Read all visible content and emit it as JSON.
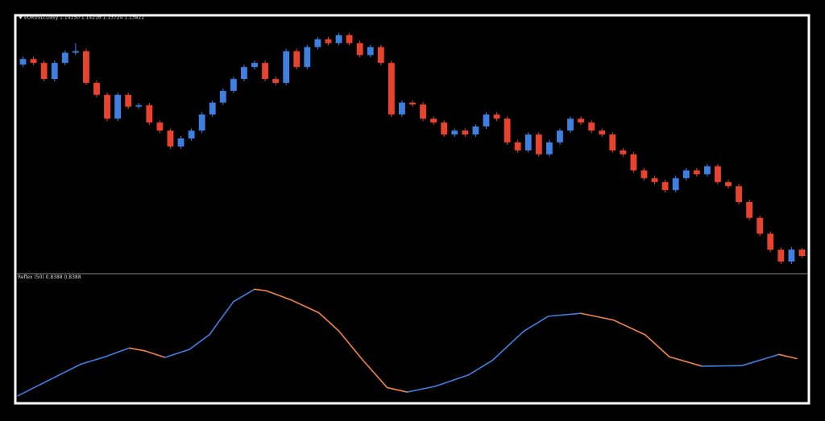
{
  "chart_data": [
    {
      "type": "candlestick",
      "title": "EURUSD,Daily  1.14150 1.14216 1.13724 1.13822",
      "up_color": "#3f7fe0",
      "down_color": "#e8432e",
      "ylim": [
        1.13,
        1.26
      ],
      "open": [
        1.236,
        1.2389,
        1.2369,
        1.2287,
        1.2369,
        1.2421,
        1.2429,
        1.2267,
        1.2206,
        1.2084,
        1.2206,
        1.2145,
        1.2153,
        1.2064,
        1.2023,
        1.1942,
        1.1983,
        1.2023,
        1.2105,
        1.2166,
        1.2226,
        1.2287,
        1.2348,
        1.2369,
        1.2287,
        1.2267,
        1.2429,
        1.2348,
        1.245,
        1.249,
        1.247,
        1.2511,
        1.247,
        1.2409,
        1.245,
        1.2369,
        1.2105,
        1.2166,
        1.2157,
        1.2084,
        1.2064,
        1.2003,
        1.2023,
        1.2003,
        1.2044,
        1.2105,
        1.2084,
        1.1963,
        1.1922,
        1.2003,
        1.1902,
        1.1963,
        1.2023,
        1.2084,
        1.2064,
        1.2023,
        1.2003,
        1.1922,
        1.1902,
        1.182,
        1.178,
        1.176,
        1.1719,
        1.178,
        1.182,
        1.18,
        1.1841,
        1.176,
        1.1739,
        1.1658,
        1.1577,
        1.1496,
        1.1414,
        1.1354,
        1.1415
      ],
      "high": [
        1.2401,
        1.2401,
        1.2381,
        1.2381,
        1.2433,
        1.247,
        1.2441,
        1.2279,
        1.2218,
        1.2218,
        1.2218,
        1.2165,
        1.2165,
        1.2076,
        1.2035,
        1.1995,
        1.2035,
        1.2117,
        1.2178,
        1.2238,
        1.2299,
        1.236,
        1.2381,
        1.2381,
        1.2299,
        1.2441,
        1.2441,
        1.2462,
        1.2502,
        1.2502,
        1.2523,
        1.2523,
        1.2482,
        1.2462,
        1.2462,
        1.2381,
        1.2178,
        1.2178,
        1.2169,
        1.2096,
        1.2076,
        1.2035,
        1.2035,
        1.2056,
        1.2117,
        1.2117,
        1.2096,
        1.1975,
        1.2015,
        1.2015,
        1.1975,
        1.2035,
        1.2096,
        1.2096,
        1.2076,
        1.2035,
        1.2015,
        1.1934,
        1.1914,
        1.1832,
        1.1792,
        1.1772,
        1.1792,
        1.1832,
        1.1832,
        1.1853,
        1.1853,
        1.1772,
        1.1751,
        1.167,
        1.1589,
        1.1508,
        1.1426,
        1.1427,
        1.1422
      ],
      "low": [
        1.2348,
        1.2357,
        1.2275,
        1.2275,
        1.2357,
        1.2409,
        1.2255,
        1.2194,
        1.2072,
        1.2072,
        1.2133,
        1.2133,
        1.2052,
        1.2011,
        1.193,
        1.193,
        1.1971,
        1.2011,
        1.2093,
        1.2154,
        1.2214,
        1.2275,
        1.2336,
        1.2275,
        1.2255,
        1.2255,
        1.2336,
        1.2336,
        1.2438,
        1.2458,
        1.2458,
        1.2458,
        1.2397,
        1.2397,
        1.2357,
        1.2093,
        1.2093,
        1.2145,
        1.2072,
        1.2052,
        1.1991,
        1.1991,
        1.1991,
        1.1991,
        1.2032,
        1.2072,
        1.1951,
        1.191,
        1.191,
        1.189,
        1.189,
        1.1951,
        1.2011,
        1.2052,
        1.2011,
        1.1991,
        1.191,
        1.189,
        1.1808,
        1.1768,
        1.1748,
        1.1707,
        1.1707,
        1.1768,
        1.1788,
        1.1788,
        1.1748,
        1.1727,
        1.1646,
        1.1565,
        1.1484,
        1.1402,
        1.1342,
        1.1342,
        1.1372
      ],
      "close": [
        1.2389,
        1.2369,
        1.2287,
        1.2369,
        1.2421,
        1.2429,
        1.2267,
        1.2206,
        1.2084,
        1.2206,
        1.2145,
        1.2153,
        1.2064,
        1.2023,
        1.1942,
        1.1983,
        1.2023,
        1.2105,
        1.2166,
        1.2226,
        1.2287,
        1.2348,
        1.2369,
        1.2287,
        1.2267,
        1.2429,
        1.2348,
        1.245,
        1.249,
        1.247,
        1.2511,
        1.247,
        1.2409,
        1.245,
        1.2369,
        1.2105,
        1.2166,
        1.2157,
        1.2084,
        1.2064,
        1.2003,
        1.2023,
        1.2003,
        1.2044,
        1.2105,
        1.2084,
        1.1963,
        1.1922,
        1.2003,
        1.1902,
        1.1963,
        1.2023,
        1.2084,
        1.2064,
        1.2023,
        1.2003,
        1.1922,
        1.1902,
        1.182,
        1.178,
        1.176,
        1.1719,
        1.178,
        1.182,
        1.18,
        1.1841,
        1.176,
        1.1739,
        1.1658,
        1.1577,
        1.1496,
        1.1414,
        1.1354,
        1.1415,
        1.1382
      ]
    },
    {
      "type": "line",
      "title": "Reflex (50) 0.8388 0.8388",
      "up_color": "#3f7fe0",
      "down_color": "#f0824a",
      "ylim": [
        -0.6,
        3.4
      ],
      "xlim": [
        0,
        75
      ],
      "x": [
        0,
        2.1,
        6,
        8.3,
        10.6,
        12.1,
        14,
        16.3,
        18.2,
        20.5,
        22.5,
        23.6,
        26,
        28.6,
        30.5,
        32.8,
        35.1,
        37,
        39.7,
        42.8,
        45.1,
        48.1,
        50.4,
        53.5,
        56.6,
        59.6,
        61.9,
        65,
        68.8,
        72.3,
        74
      ],
      "values": [
        -0.43,
        -0.05,
        0.65,
        0.9,
        1.2,
        1.1,
        0.88,
        1.15,
        1.65,
        2.78,
        3.2,
        3.15,
        2.83,
        2.4,
        1.78,
        0.78,
        -0.15,
        -0.3,
        -0.1,
        0.28,
        0.78,
        1.78,
        2.28,
        2.38,
        2.15,
        1.65,
        0.9,
        0.58,
        0.6,
        0.98,
        0.8388
      ]
    }
  ]
}
